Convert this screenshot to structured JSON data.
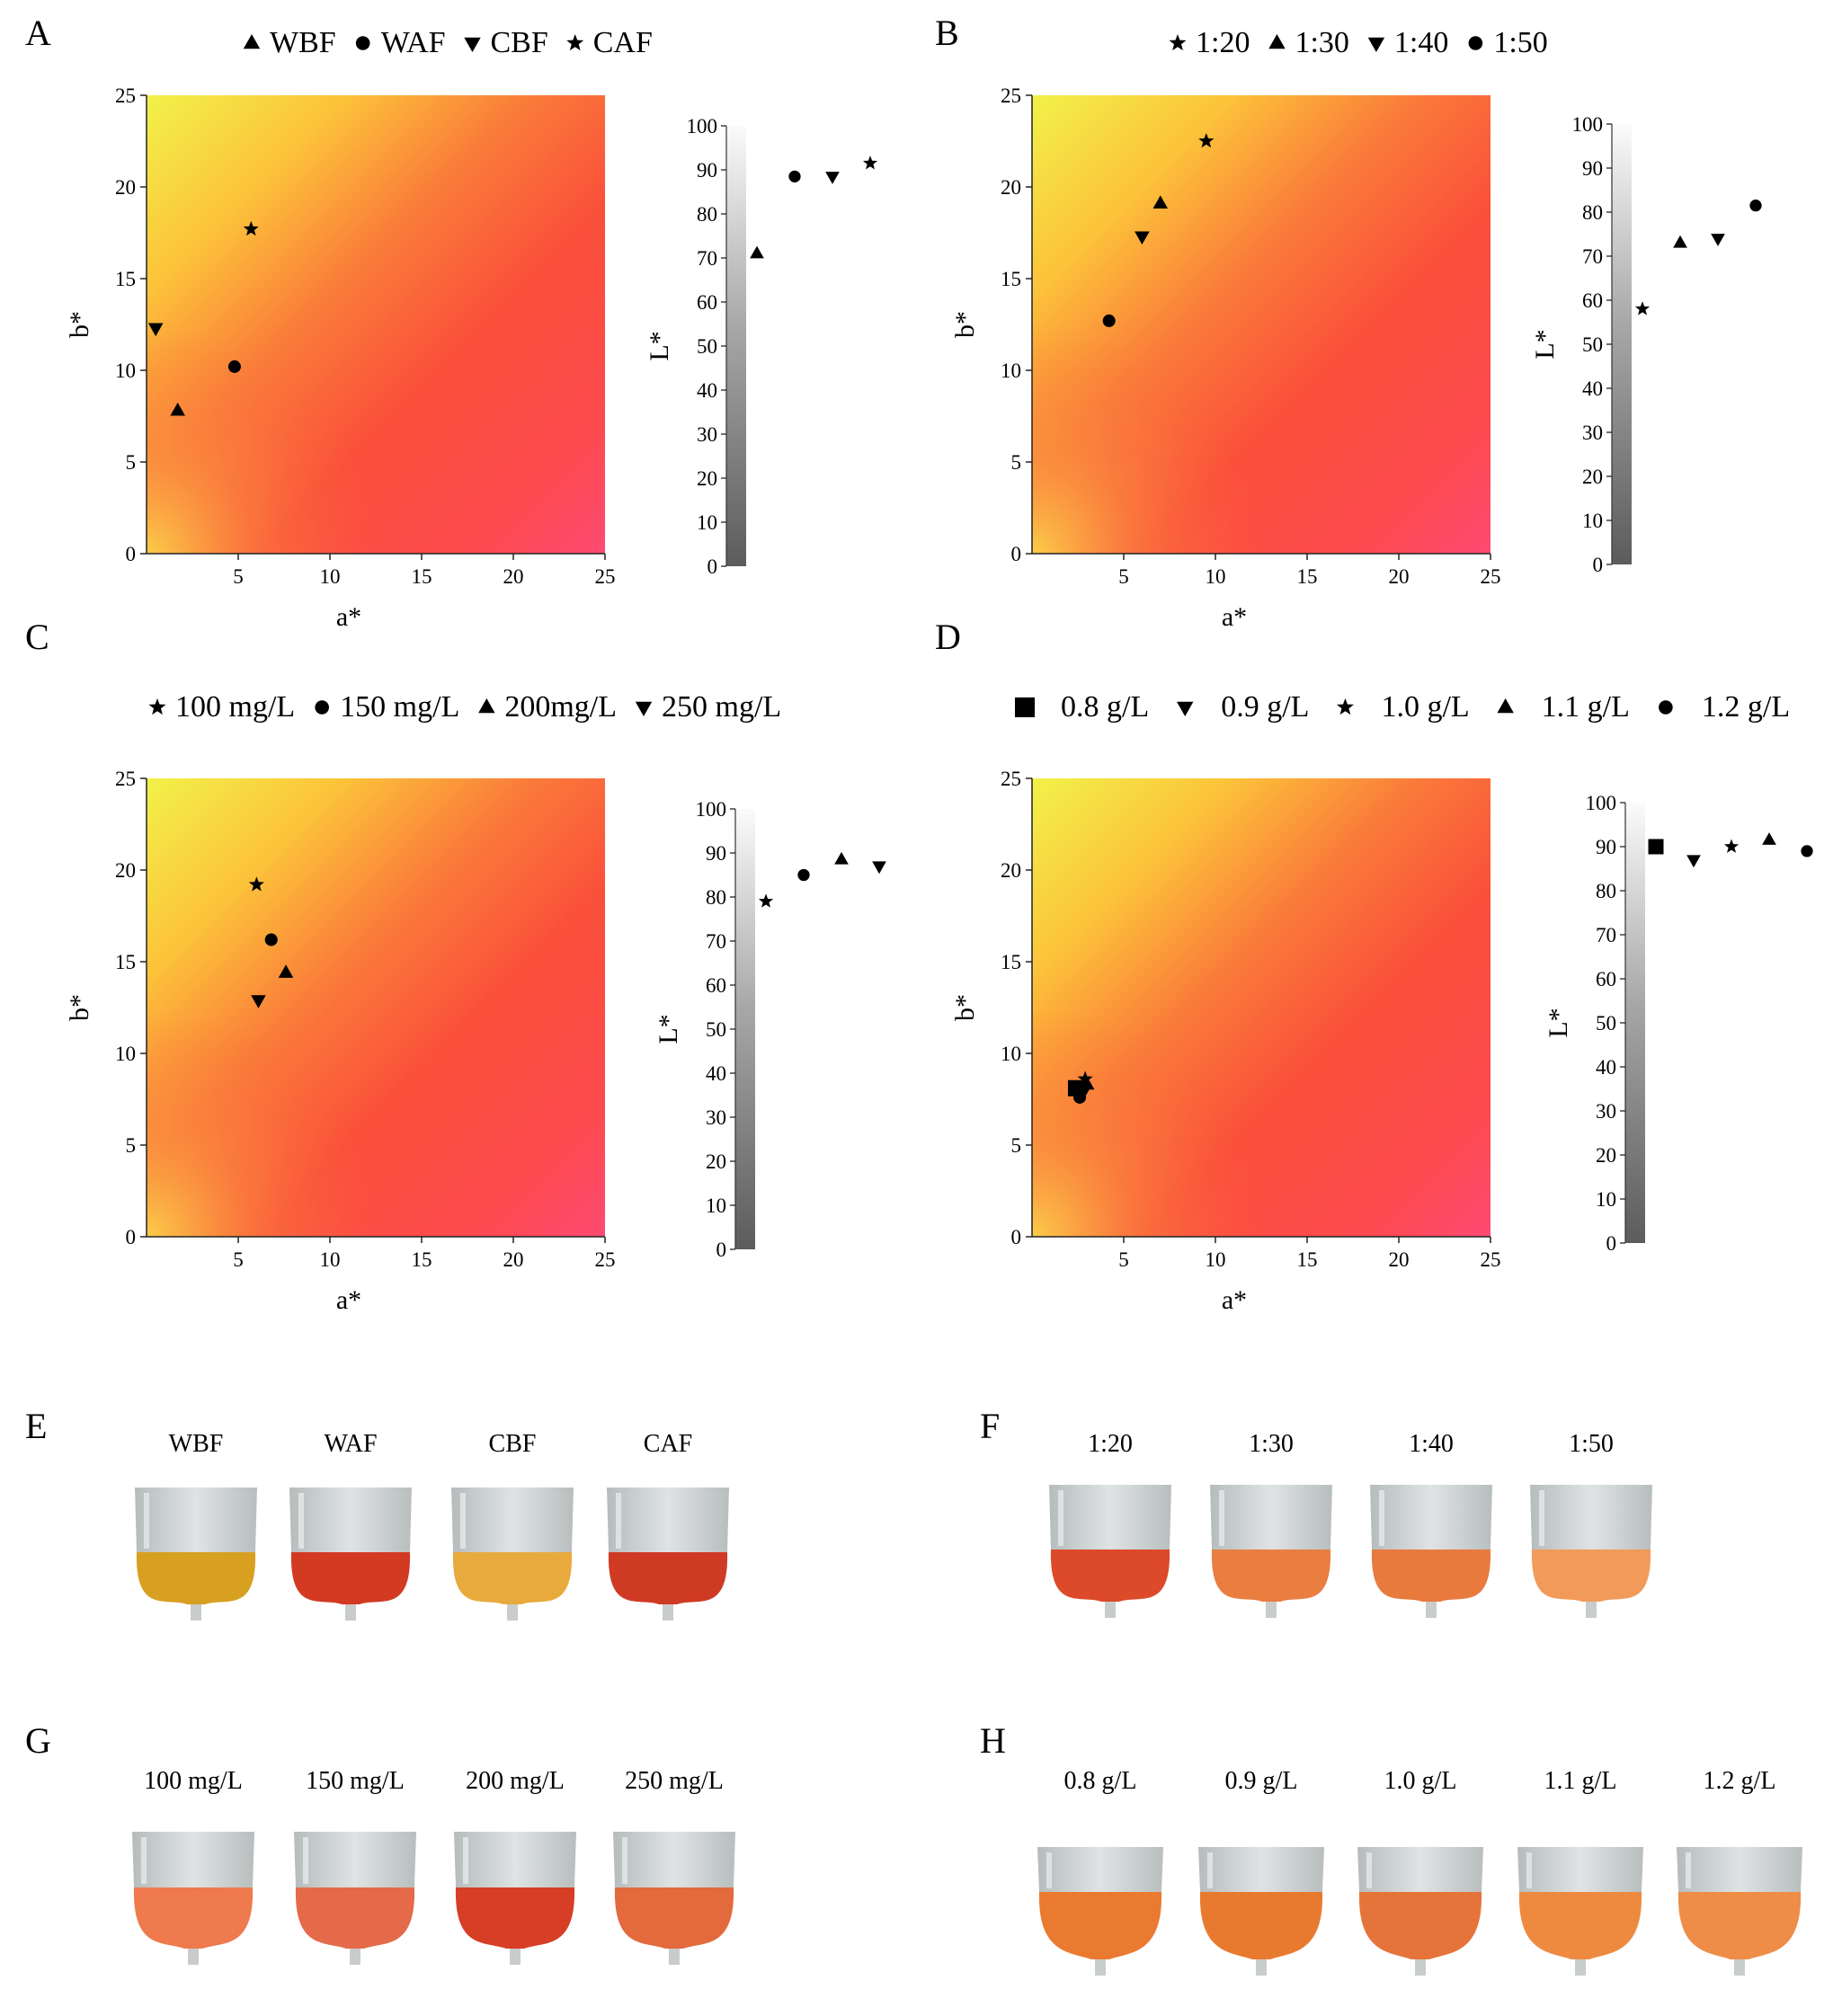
{
  "figure": {
    "ab_axis": {
      "xlabel": "a*",
      "ylabel": "b*",
      "ticks": [
        0,
        5,
        10,
        15,
        20,
        25
      ],
      "range": [
        0,
        25
      ]
    },
    "l_axis": {
      "ylabel": "L*",
      "ticks": [
        0,
        10,
        20,
        30,
        40,
        50,
        60,
        70,
        80,
        90,
        100
      ],
      "range": [
        0,
        100
      ]
    }
  },
  "chart_data": [
    {
      "panel": "A",
      "type": "scatter",
      "legend": [
        "WBF",
        "WAF",
        "CBF",
        "CAF"
      ],
      "series": [
        {
          "name": "WBF",
          "marker": "triangle-up",
          "a": 1.7,
          "b": 7.8,
          "L": 71
        },
        {
          "name": "WAF",
          "marker": "circle",
          "a": 4.8,
          "b": 10.2,
          "L": 88.5
        },
        {
          "name": "CBF",
          "marker": "triangle-down",
          "a": 0.5,
          "b": 12.3,
          "L": 88.5
        },
        {
          "name": "CAF",
          "marker": "star",
          "a": 5.7,
          "b": 17.7,
          "L": 91.5
        }
      ]
    },
    {
      "panel": "B",
      "type": "scatter",
      "legend": [
        "1:20",
        "1:30",
        "1:40",
        "1:50"
      ],
      "series": [
        {
          "name": "1:20",
          "marker": "star",
          "a": 9.5,
          "b": 22.5,
          "L": 58
        },
        {
          "name": "1:30",
          "marker": "triangle-up",
          "a": 7.0,
          "b": 19.1,
          "L": 73
        },
        {
          "name": "1:40",
          "marker": "triangle-down",
          "a": 6.0,
          "b": 17.3,
          "L": 74
        },
        {
          "name": "1:50",
          "marker": "circle",
          "a": 4.2,
          "b": 12.7,
          "L": 81.5
        }
      ]
    },
    {
      "panel": "C",
      "type": "scatter",
      "legend": [
        "100 mg/L",
        "150 mg/L",
        "200mg/L",
        "250 mg/L"
      ],
      "series": [
        {
          "name": "100 mg/L",
          "marker": "star",
          "a": 6.0,
          "b": 19.2,
          "L": 79
        },
        {
          "name": "150 mg/L",
          "marker": "circle",
          "a": 6.8,
          "b": 16.2,
          "L": 85
        },
        {
          "name": "200mg/L",
          "marker": "triangle-up",
          "a": 7.6,
          "b": 14.4,
          "L": 88.5
        },
        {
          "name": "250 mg/L",
          "marker": "triangle-down",
          "a": 6.1,
          "b": 12.9,
          "L": 87
        }
      ]
    },
    {
      "panel": "D",
      "type": "scatter",
      "legend": [
        "0.8 g/L",
        "0.9 g/L",
        "1.0 g/L",
        "1.1 g/L",
        "1.2 g/L"
      ],
      "series": [
        {
          "name": "0.8 g/L",
          "marker": "square",
          "a": 2.4,
          "b": 8.1,
          "L": 90
        },
        {
          "name": "0.9 g/L",
          "marker": "triangle-down",
          "a": 2.8,
          "b": 7.9,
          "L": 87
        },
        {
          "name": "1.0 g/L",
          "marker": "star",
          "a": 2.9,
          "b": 8.6,
          "L": 90
        },
        {
          "name": "1.1 g/L",
          "marker": "triangle-up",
          "a": 3.0,
          "b": 8.3,
          "L": 91.5
        },
        {
          "name": "1.2 g/L",
          "marker": "circle",
          "a": 2.6,
          "b": 7.6,
          "L": 89
        }
      ]
    }
  ],
  "photo_panels": [
    {
      "panel": "E",
      "labels": [
        "WBF",
        "WAF",
        "CBF",
        "CAF"
      ],
      "colors": [
        "#d8a020",
        "#d23a22",
        "#e8aa3c",
        "#cf3a24"
      ]
    },
    {
      "panel": "F",
      "labels": [
        "1:20",
        "1:30",
        "1:40",
        "1:50"
      ],
      "colors": [
        "#dc4a2a",
        "#ea7d40",
        "#e87a3e",
        "#f29a5a"
      ]
    },
    {
      "panel": "G",
      "labels": [
        "100 mg/L",
        "150 mg/L",
        "200 mg/L",
        "250 mg/L"
      ],
      "colors": [
        "#ee7a4e",
        "#e46a4a",
        "#d63e26",
        "#e26a3c"
      ]
    },
    {
      "panel": "H",
      "labels": [
        "0.8 g/L",
        "0.9 g/L",
        "1.0 g/L",
        "1.1 g/L",
        "1.2 g/L"
      ],
      "colors": [
        "#ea7a30",
        "#e87a30",
        "#e5743a",
        "#ee8a40",
        "#ef8c48"
      ]
    }
  ]
}
